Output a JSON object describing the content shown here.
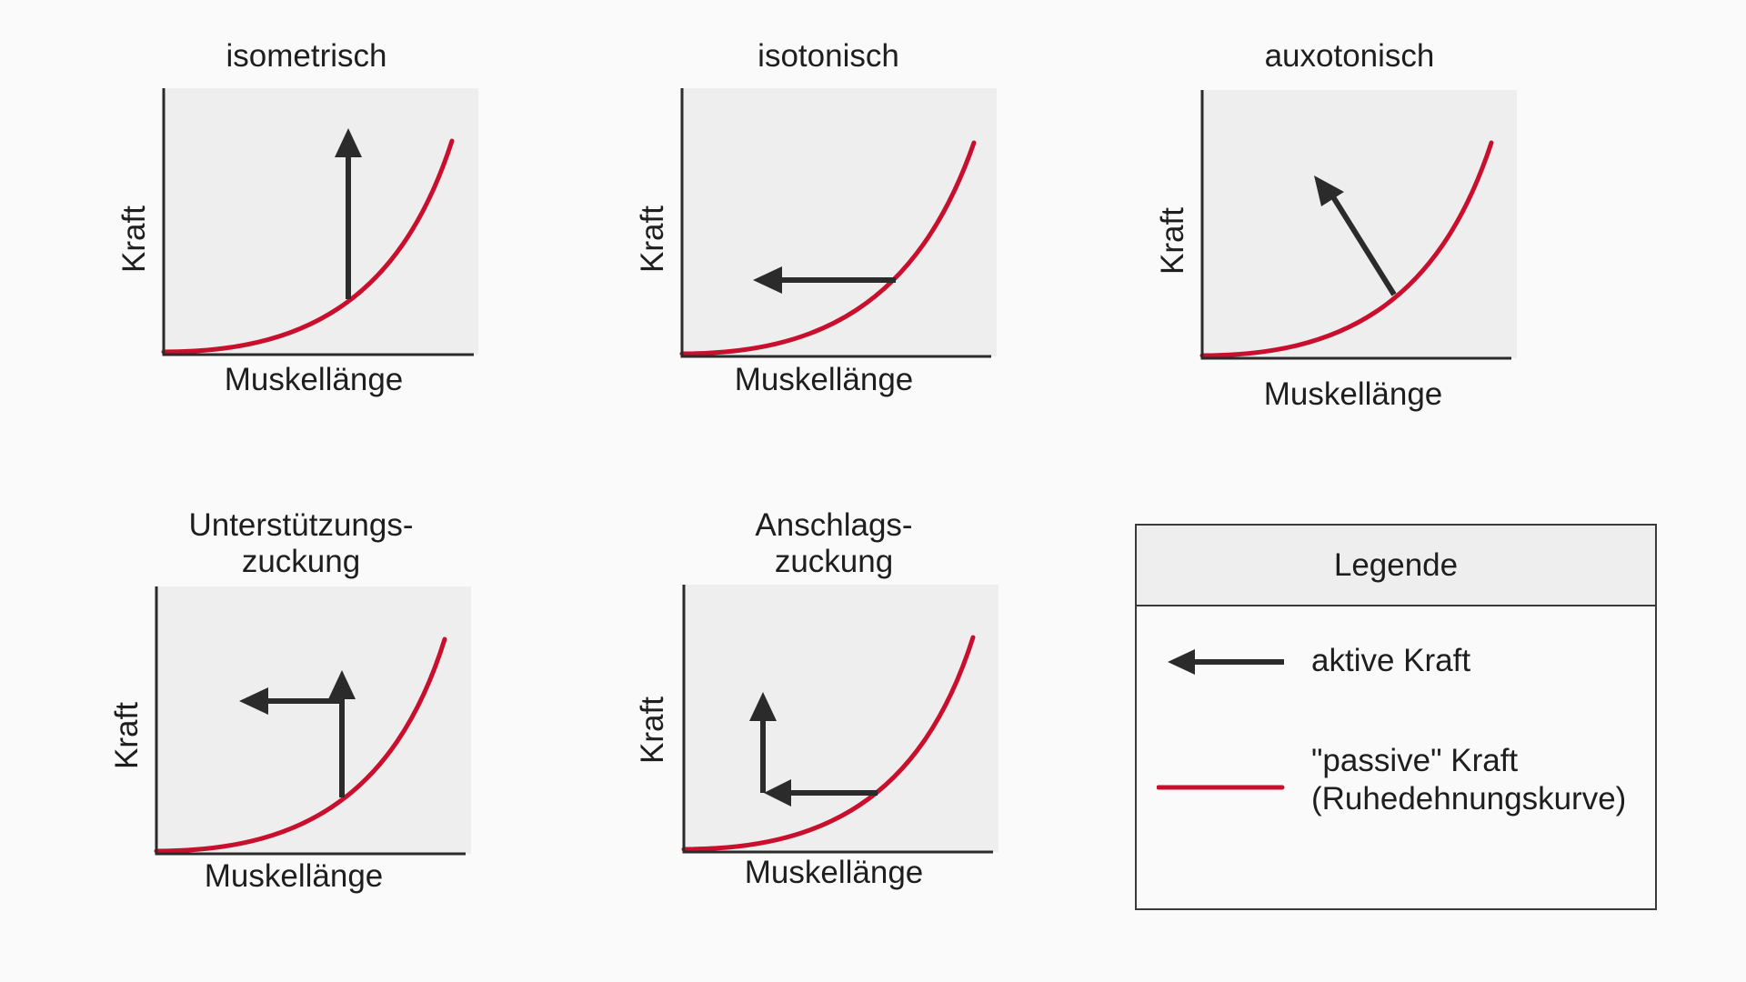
{
  "colors": {
    "passive_curve": "#c8102e",
    "active_arrow": "#2b2b2b",
    "plot_background": "#eeeeee",
    "axis": "#2b2b2b"
  },
  "axes": {
    "xlabel": "Muskellänge",
    "ylabel": "Kraft"
  },
  "panels": [
    {
      "title_line1": "isometrisch",
      "title_line2": "",
      "active_force": "up"
    },
    {
      "title_line1": "isotonisch",
      "title_line2": "",
      "active_force": "left"
    },
    {
      "title_line1": "auxotonisch",
      "title_line2": "",
      "active_force": "up-left diagonal"
    },
    {
      "title_line1": "Unterstützungs-",
      "title_line2": "zuckung",
      "active_force": "up then left"
    },
    {
      "title_line1": "Anschlags-",
      "title_line2": "zuckung",
      "active_force": "left then up"
    }
  ],
  "legend": {
    "title": "Legende",
    "active_label": "aktive Kraft",
    "passive_label_line1": "\"passive\" Kraft",
    "passive_label_line2": "(Ruhedehnungskurve)"
  }
}
